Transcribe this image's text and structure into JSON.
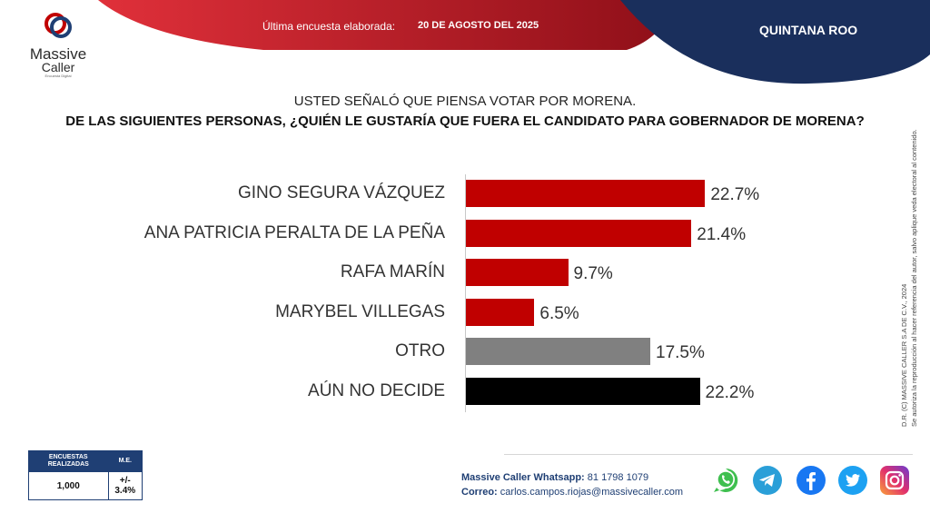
{
  "header": {
    "brand_line1": "Massive",
    "brand_line2": "Caller",
    "brand_tagline": "Encuesta Digital",
    "survey_label": "Última encuesta elaborada:",
    "survey_date": "20 DE AGOSTO DEL 2025",
    "state": "QUINTANA ROO"
  },
  "question": {
    "line1": "USTED SEÑALÓ QUE PIENSA VOTAR POR MORENA.",
    "line2": "DE LAS SIGUIENTES PERSONAS, ¿QUIÉN LE GUSTARÍA QUE FUERA EL CANDIDATO PARA GOBERNADOR DE MORENA?"
  },
  "chart_data": {
    "type": "bar",
    "orientation": "horizontal",
    "title": "",
    "xlabel": "",
    "ylabel": "",
    "unit": "%",
    "categories": [
      "GINO SEGURA VÁZQUEZ",
      "ANA PATRICIA PERALTA DE LA PEÑA",
      "RAFA MARÍN",
      "MARYBEL VILLEGAS",
      "OTRO",
      "AÚN NO DECIDE"
    ],
    "values": [
      22.7,
      21.4,
      9.7,
      6.5,
      17.5,
      22.2
    ],
    "labels": [
      "22.7%",
      "21.4%",
      "9.7%",
      "6.5%",
      "17.5%",
      "22.2%"
    ],
    "colors": [
      "#c00000",
      "#c00000",
      "#c00000",
      "#c00000",
      "#808080",
      "#000000"
    ],
    "xlim": [
      0,
      30
    ],
    "grid": false,
    "legend": "none"
  },
  "stats": {
    "col1_header": "ENCUESTAS REALIZADAS",
    "col2_header": "M.E.",
    "surveys": "1,000",
    "margin": "+/- 3.4%"
  },
  "side_note": {
    "line1": "D.R. (C) MASSIVE CALLER S.A DE C.V., 2024",
    "line2": "Se autoriza la reproducción al hacer referencia del autor, salvo aplique veda electoral al contenido."
  },
  "contact": {
    "whatsapp_label": "Massive Caller Whatsapp:",
    "whatsapp_number": "81 1798 1079",
    "email_label": "Correo:",
    "email": "carlos.campos.riojas@massivecaller.com"
  },
  "social": [
    "whatsapp-icon",
    "telegram-icon",
    "facebook-icon",
    "twitter-icon",
    "instagram-icon"
  ],
  "colors": {
    "red": "#c00000",
    "navy": "#1f3f74",
    "gray": "#808080"
  }
}
